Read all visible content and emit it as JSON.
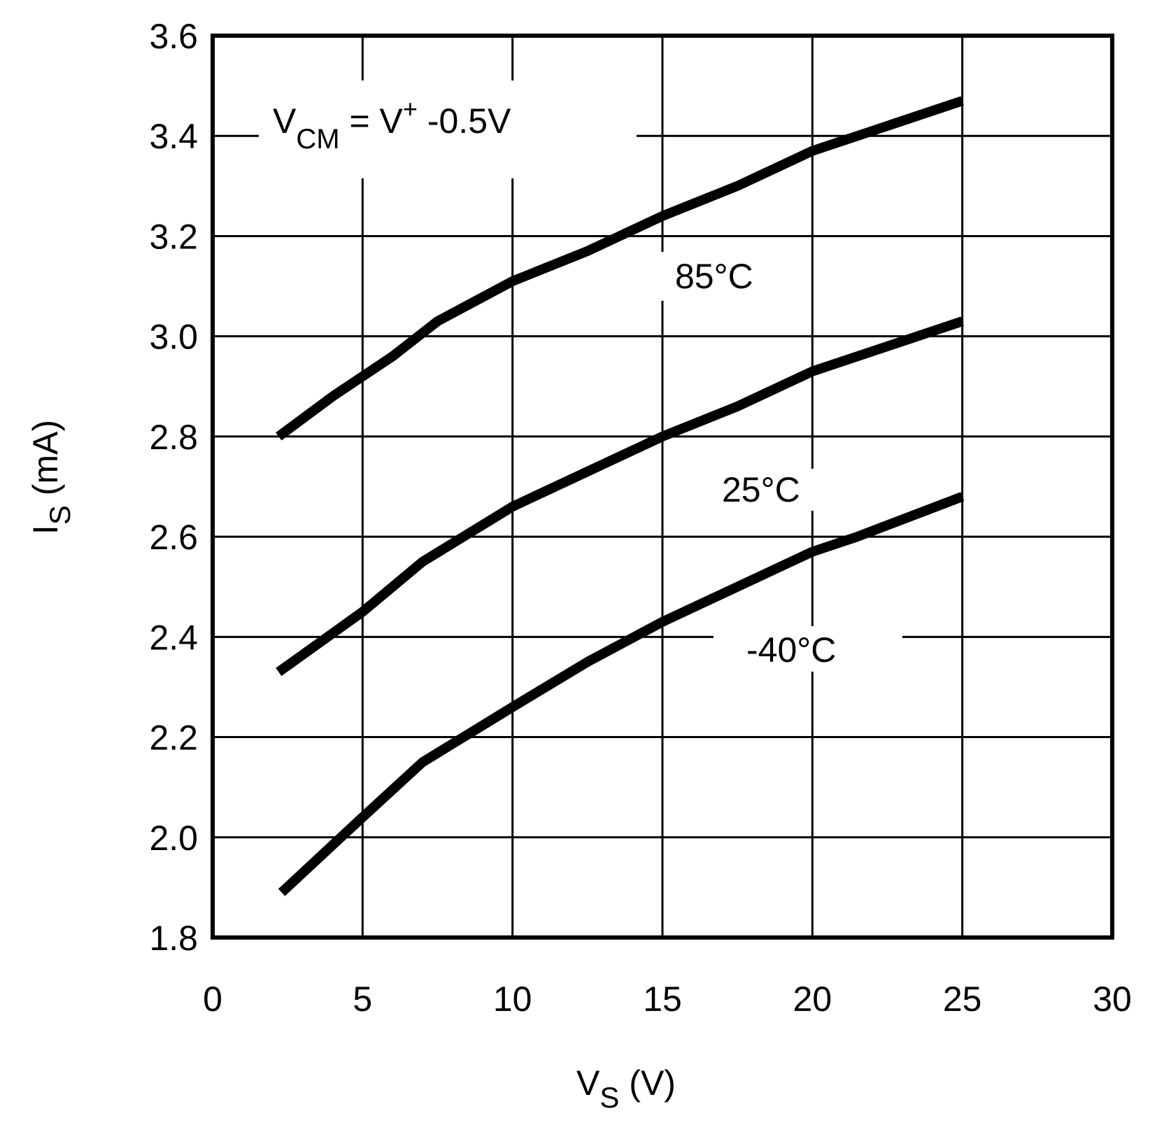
{
  "chart_data": {
    "type": "line",
    "title": "",
    "xlabel": {
      "main": "V",
      "sub": "S",
      "unit": " (V)"
    },
    "ylabel": {
      "main": "I",
      "sub": "S",
      "unit": " (mA)"
    },
    "xlim": [
      0,
      30
    ],
    "ylim": [
      1.8,
      3.6
    ],
    "x_ticks": [
      "0",
      "5",
      "10",
      "15",
      "20",
      "25",
      "30"
    ],
    "y_ticks": [
      "1.8",
      "2.0",
      "2.2",
      "2.4",
      "2.6",
      "2.8",
      "3.0",
      "3.2",
      "3.4",
      "3.6"
    ],
    "grid": true,
    "annotation": {
      "v": "V",
      "cm": "CM",
      "eq": " = V",
      "plus": "+",
      "rest": " -0.5V"
    },
    "series": [
      {
        "name": "85°C",
        "x": [
          2.2,
          4,
          6,
          7.5,
          10,
          12.5,
          15,
          17.5,
          20,
          22,
          25
        ],
        "y": [
          2.8,
          2.88,
          2.96,
          3.03,
          3.11,
          3.17,
          3.24,
          3.3,
          3.37,
          3.41,
          3.47
        ]
      },
      {
        "name": "25°C",
        "x": [
          2.2,
          5,
          7,
          10,
          12.5,
          15,
          17.5,
          20,
          22,
          25
        ],
        "y": [
          2.33,
          2.45,
          2.55,
          2.66,
          2.73,
          2.8,
          2.86,
          2.93,
          2.97,
          3.03
        ]
      },
      {
        "name": "-40°C",
        "x": [
          2.3,
          5,
          7,
          10,
          12.5,
          15,
          17.5,
          20,
          21.5,
          25
        ],
        "y": [
          1.89,
          2.04,
          2.15,
          2.26,
          2.35,
          2.43,
          2.5,
          2.57,
          2.6,
          2.68
        ]
      }
    ],
    "line_color": "#000000"
  }
}
